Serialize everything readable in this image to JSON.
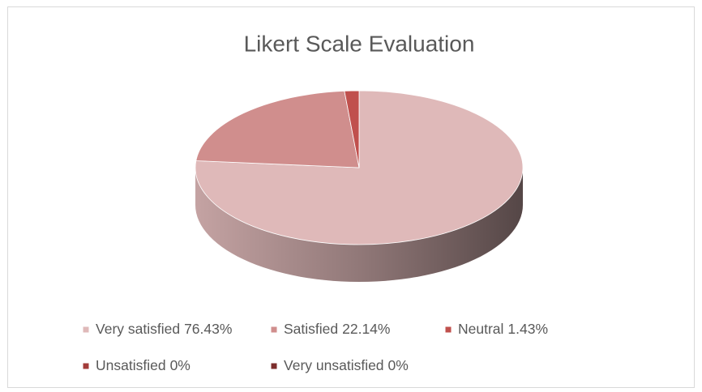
{
  "chart_data": {
    "type": "pie",
    "title": "Likert Scale Evaluation",
    "categories": [
      "Very satisfied",
      "Satisfied",
      "Neutral",
      "Unsatisfied",
      "Very unsatisfied"
    ],
    "values": [
      76.43,
      22.14,
      1.43,
      0,
      0
    ],
    "value_labels": [
      "76.43%",
      "22.14%",
      "1.43%",
      "0%",
      "0%"
    ],
    "colors": [
      "#dfb9b9",
      "#d08e8d",
      "#c0504d",
      "#a33c3a",
      "#7c2e2c"
    ],
    "legend": "bottom"
  }
}
